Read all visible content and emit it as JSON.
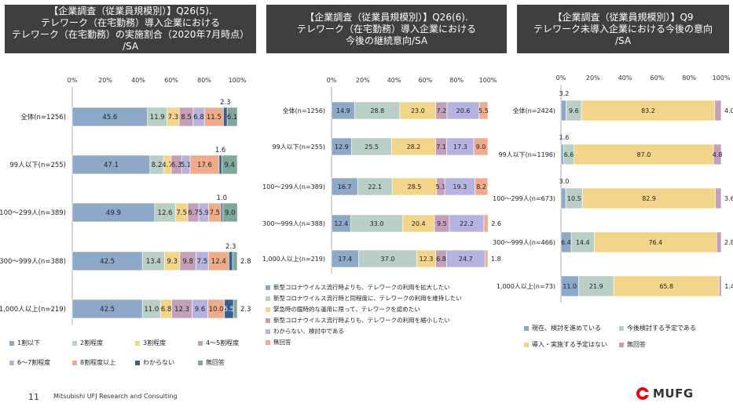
{
  "panels": {
    "p1": {
      "title": "【企業調査（従業員規模別）】Q26(5).\nテレワーク（在宅勤務）導入企業における\nテレワーク（在宅勤務）の実施割合（2020年7月時点）\n/SA"
    },
    "p2": {
      "title": "【企業調査（従業員規模別）】Q26(6).\nテレワーク（在宅勤務）導入企業における\n今後の継続意向/SA"
    },
    "p3": {
      "title": "【企業調査（従業員規模別）】Q9\nテレワーク未導入企業における今後の意向\n/SA"
    }
  },
  "footer": {
    "page": "11",
    "org": "Mitsubishi UFJ Research and Consulting",
    "logo": "MUFG"
  },
  "chart_data": [
    {
      "type": "bar",
      "orientation": "horizontal-stacked",
      "title": "【企業調査（従業員規模別）】Q26(5). テレワーク（在宅勤務）導入企業におけるテレワーク（在宅勤務）の実施割合（2020年7月時点）/SA",
      "xlim": [
        0,
        100
      ],
      "x_tick_labels": [
        "0%",
        "20%",
        "40%",
        "60%",
        "80%",
        "100%"
      ],
      "categories": [
        "全体(n=1256)",
        "99人以下(n=255)",
        "100～299人(n=389)",
        "300～999人(n=388)",
        "1,000人以上(n=219)"
      ],
      "series": [
        {
          "name": "1割以下",
          "color": "#8ea9c8",
          "values": [
            45.6,
            47.1,
            49.9,
            42.5,
            42.5
          ]
        },
        {
          "name": "2割程度",
          "color": "#b9cec5",
          "values": [
            11.9,
            8.2,
            12.6,
            13.4,
            11.0
          ]
        },
        {
          "name": "3割程度",
          "color": "#f2d58a",
          "values": [
            7.3,
            4.7,
            7.5,
            9.3,
            6.8
          ]
        },
        {
          "name": "4～5割程度",
          "color": "#c4a0b8",
          "values": [
            8.5,
            6.3,
            6.7,
            9.8,
            12.3
          ]
        },
        {
          "name": "6～7割程度",
          "color": "#b7b3e0",
          "values": [
            6.8,
            5.1,
            5.9,
            7.5,
            9.6
          ]
        },
        {
          "name": "8割程度以上",
          "color": "#efac8c",
          "values": [
            11.5,
            17.6,
            7.5,
            12.4,
            10.0
          ]
        },
        {
          "name": "わからない",
          "color": "#3a5f8f",
          "values": [
            2.3,
            1.6,
            1.0,
            2.3,
            5.5
          ]
        },
        {
          "name": "無回答",
          "color": "#7fa89a",
          "values": [
            6.1,
            9.4,
            9.0,
            2.8,
            2.3
          ]
        }
      ],
      "data_labels": [
        [
          "45.6",
          "11.9",
          "7.3",
          "8.5",
          "6.8",
          "11.5",
          "2.3",
          "6.1"
        ],
        [
          "47.1",
          "8.2",
          "4.7",
          "6.3",
          "5.1",
          "17.6",
          "1.6",
          "9.4"
        ],
        [
          "49.9",
          "12.6",
          "7.5",
          "6.7",
          "5.9",
          "7.5",
          "1.0",
          "9.0"
        ],
        [
          "42.5",
          "13.4",
          "9.3",
          "9.8",
          "7.5",
          "12.4",
          "2.3",
          "2.8"
        ],
        [
          "42.5",
          "11.0",
          "6.8",
          "12.3",
          "9.6",
          "10.0",
          "5.5",
          "2.3"
        ]
      ],
      "legend": "bottom"
    },
    {
      "type": "bar",
      "orientation": "horizontal-stacked",
      "title": "【企業調査（従業員規模別）】Q26(6). テレワーク（在宅勤務）導入企業における今後の継続意向/SA",
      "xlim": [
        0,
        100
      ],
      "x_tick_labels": [
        "0%",
        "20%",
        "40%",
        "60%",
        "80%",
        "100%"
      ],
      "categories": [
        "全体(n=1256)",
        "99人以下(n=255)",
        "100～299人(n=389)",
        "300～999人(n=388)",
        "1,000人以上(n=219)"
      ],
      "series": [
        {
          "name": "新型コロナウイルス流行時よりも、テレワークの利用を拡大したい",
          "color": "#8ea9c8",
          "values": [
            14.9,
            12.9,
            16.7,
            12.4,
            17.4
          ]
        },
        {
          "name": "新型コロナウイルス流行時と同程度に、テレワークの利用を維持したい",
          "color": "#b9cec5",
          "values": [
            28.8,
            25.5,
            22.1,
            33.0,
            37.0
          ]
        },
        {
          "name": "緊急時の臨時的な運用に限って、テレワークを認めたい",
          "color": "#f2d58a",
          "values": [
            23.0,
            28.2,
            28.5,
            20.4,
            12.3
          ]
        },
        {
          "name": "新型コロナウイルス流行時よりも、テレワークの利用を縮小したい",
          "color": "#c4a0b8",
          "values": [
            7.2,
            7.1,
            5.1,
            9.5,
            6.8
          ]
        },
        {
          "name": "わからない、検討中である",
          "color": "#b7b3e0",
          "values": [
            20.6,
            17.3,
            19.3,
            22.2,
            24.7
          ]
        },
        {
          "name": "無回答",
          "color": "#efac8c",
          "values": [
            5.5,
            9.0,
            8.2,
            2.6,
            1.8
          ]
        }
      ],
      "legend": "bottom"
    },
    {
      "type": "bar",
      "orientation": "horizontal-stacked",
      "title": "【企業調査（従業員規模別）】Q9 テレワーク未導入企業における今後の意向/SA",
      "xlim": [
        0,
        100
      ],
      "x_tick_labels": [
        "0%",
        "20%",
        "40%",
        "60%",
        "80%",
        "100%"
      ],
      "categories": [
        "全体(n=2424)",
        "99人以下(n=1196)",
        "100～299人(n=673)",
        "300～999人(n=466)",
        "1,000人以上(n=73)"
      ],
      "series": [
        {
          "name": "現在、検討を進めている",
          "color": "#8ea9c8",
          "values": [
            3.2,
            1.6,
            3.0,
            6.4,
            11.0
          ]
        },
        {
          "name": "今後検討する予定である",
          "color": "#b9cec5",
          "values": [
            9.6,
            6.6,
            10.5,
            14.4,
            21.9
          ]
        },
        {
          "name": "導入・実施する予定はない",
          "color": "#f2d58a",
          "values": [
            83.2,
            87.0,
            82.9,
            76.4,
            65.8
          ]
        },
        {
          "name": "無回答",
          "color": "#c4a0b8",
          "values": [
            4.0,
            4.8,
            3.6,
            2.8,
            1.4
          ]
        }
      ],
      "legend": "bottom"
    }
  ]
}
